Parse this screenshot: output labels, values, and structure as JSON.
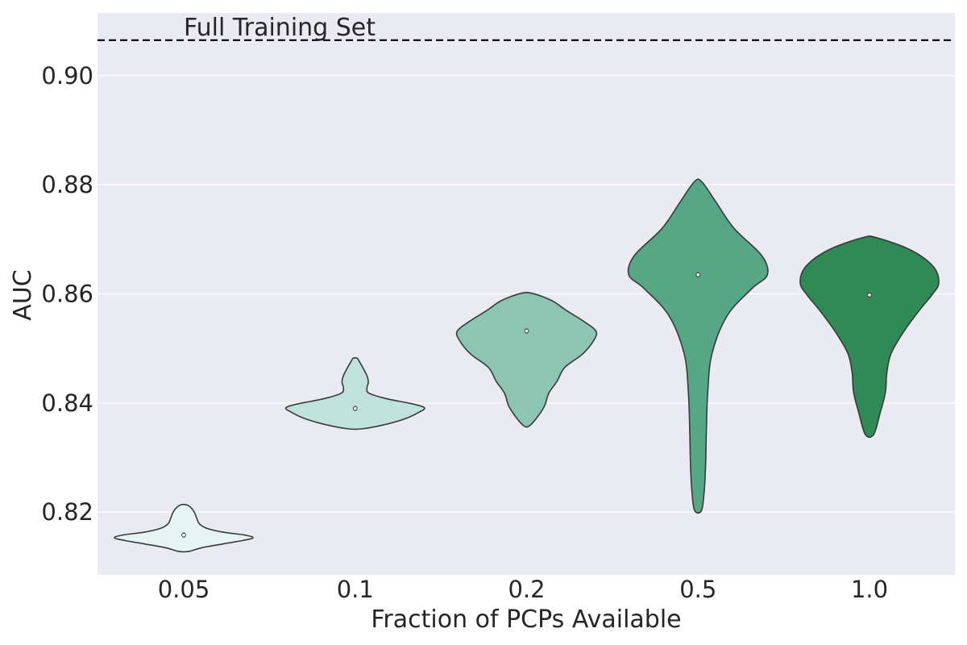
{
  "chart_data": {
    "type": "violin",
    "xlabel": "Fraction of PCPs Available",
    "ylabel": "AUC",
    "categories": [
      "0.05",
      "0.1",
      "0.2",
      "0.5",
      "1.0"
    ],
    "ylim": [
      0.8085,
      0.9115
    ],
    "yticks": [
      0.82,
      0.84,
      0.86,
      0.88,
      0.9
    ],
    "ytick_labels": [
      "0.82",
      "0.84",
      "0.86",
      "0.88",
      "0.90"
    ],
    "reference_line": {
      "label": "Full Training Set",
      "value": 0.9065,
      "style": "dashed",
      "color": "#000000"
    },
    "grid": true,
    "background": "#EAEAF2",
    "colors": [
      "#E5F5F4",
      "#BFE3DB",
      "#8CC5B2",
      "#55A786",
      "#2F8A55"
    ],
    "series": [
      {
        "category": "0.05",
        "min": 0.8128,
        "max": 0.8213,
        "median": 0.8158,
        "profile": [
          [
            0.8128,
            0.07
          ],
          [
            0.8135,
            0.27
          ],
          [
            0.8142,
            0.58
          ],
          [
            0.8148,
            0.85
          ],
          [
            0.8153,
            1.0
          ],
          [
            0.8158,
            0.88
          ],
          [
            0.8163,
            0.58
          ],
          [
            0.817,
            0.34
          ],
          [
            0.8178,
            0.23
          ],
          [
            0.8188,
            0.19
          ],
          [
            0.8198,
            0.16
          ],
          [
            0.8206,
            0.12
          ],
          [
            0.8213,
            0.05
          ]
        ]
      },
      {
        "category": "0.1",
        "min": 0.8353,
        "max": 0.8482,
        "median": 0.839,
        "profile": [
          [
            0.8353,
            0.12
          ],
          [
            0.8362,
            0.48
          ],
          [
            0.8372,
            0.74
          ],
          [
            0.8383,
            0.92
          ],
          [
            0.8391,
            1.0
          ],
          [
            0.8398,
            0.84
          ],
          [
            0.8408,
            0.45
          ],
          [
            0.8418,
            0.2
          ],
          [
            0.8428,
            0.17
          ],
          [
            0.8438,
            0.19
          ],
          [
            0.845,
            0.17
          ],
          [
            0.8465,
            0.11
          ],
          [
            0.8476,
            0.06
          ],
          [
            0.8482,
            0.03
          ]
        ]
      },
      {
        "category": "0.2",
        "min": 0.8358,
        "max": 0.8601,
        "median": 0.8532,
        "profile": [
          [
            0.8358,
            0.04
          ],
          [
            0.8375,
            0.16
          ],
          [
            0.8395,
            0.26
          ],
          [
            0.8418,
            0.32
          ],
          [
            0.844,
            0.44
          ],
          [
            0.8465,
            0.55
          ],
          [
            0.849,
            0.81
          ],
          [
            0.8515,
            0.97
          ],
          [
            0.8532,
            1.0
          ],
          [
            0.855,
            0.82
          ],
          [
            0.857,
            0.57
          ],
          [
            0.8588,
            0.36
          ],
          [
            0.8601,
            0.08
          ]
        ]
      },
      {
        "category": "0.5",
        "min": 0.8203,
        "max": 0.8806,
        "median": 0.8635,
        "profile": [
          [
            0.8203,
            0.05
          ],
          [
            0.824,
            0.09
          ],
          [
            0.829,
            0.11
          ],
          [
            0.835,
            0.12
          ],
          [
            0.842,
            0.14
          ],
          [
            0.849,
            0.2
          ],
          [
            0.856,
            0.42
          ],
          [
            0.861,
            0.78
          ],
          [
            0.8635,
            1.0
          ],
          [
            0.867,
            0.92
          ],
          [
            0.872,
            0.52
          ],
          [
            0.877,
            0.25
          ],
          [
            0.8806,
            0.05
          ]
        ]
      },
      {
        "category": "1.0",
        "min": 0.8342,
        "max": 0.8703,
        "median": 0.8598,
        "profile": [
          [
            0.8342,
            0.06
          ],
          [
            0.838,
            0.15
          ],
          [
            0.842,
            0.23
          ],
          [
            0.8455,
            0.25
          ],
          [
            0.849,
            0.31
          ],
          [
            0.853,
            0.49
          ],
          [
            0.857,
            0.72
          ],
          [
            0.8598,
            0.9
          ],
          [
            0.862,
            1.0
          ],
          [
            0.865,
            0.92
          ],
          [
            0.868,
            0.6
          ],
          [
            0.8703,
            0.1
          ]
        ]
      }
    ]
  }
}
